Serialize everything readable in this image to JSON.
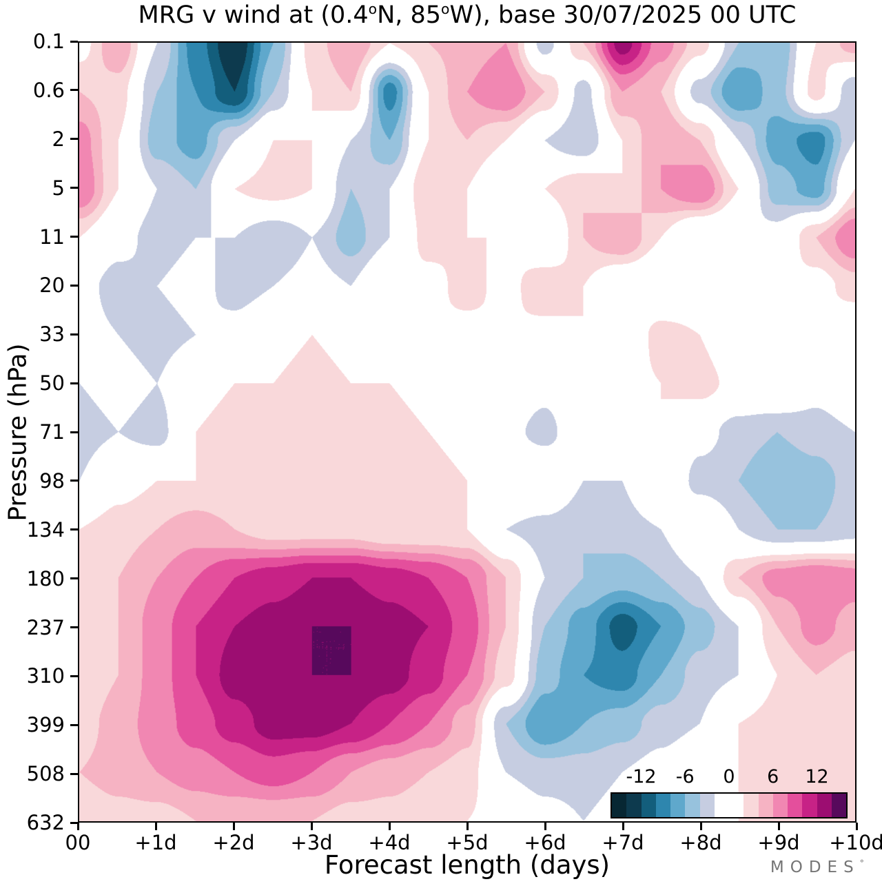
{
  "title": {
    "p1": "MRG v wind at (0.4",
    "d1": "o",
    "p2": "N, 85",
    "d2": "o",
    "p3": "W),  base 30/07/2025  00 UTC"
  },
  "axes": {
    "y_label": "Pressure (hPa)",
    "x_label": "Forecast length (days)",
    "y_ticks": [
      "0.1",
      "0.6",
      "2",
      "5",
      "11",
      "20",
      "33",
      "50",
      "71",
      "98",
      "134",
      "180",
      "237",
      "310",
      "399",
      "508",
      "632"
    ],
    "x_ticks": [
      "00",
      "+1d",
      "+2d",
      "+3d",
      "+4d",
      "+5d",
      "+6d",
      "+7d",
      "+8d",
      "+9d",
      "+10d"
    ]
  },
  "footer": {
    "logo": "MODES",
    "logo_mark": "°"
  },
  "chart_data": {
    "type": "filled_contour",
    "title": "MRG v wind at (0.4°N, 85°W), base 30/07/2025 00 UTC",
    "xlabel": "Forecast length (days)",
    "ylabel": "Pressure (hPa)",
    "x_days": [
      0,
      0.5,
      1,
      1.5,
      2,
      2.5,
      3,
      3.5,
      4,
      4.5,
      5,
      5.5,
      6,
      6.5,
      7,
      7.5,
      8,
      8.5,
      9,
      9.5,
      10
    ],
    "pressure_levels": [
      0.1,
      0.6,
      2,
      5,
      11,
      20,
      33,
      50,
      71,
      98,
      134,
      180,
      237,
      310,
      399,
      508,
      632
    ],
    "values": [
      [
        1,
        6,
        -2,
        -9,
        -14,
        -6,
        3,
        6,
        2,
        4,
        5,
        6,
        -3,
        4,
        13,
        7,
        3,
        -4,
        -6,
        2,
        5
      ],
      [
        4,
        3,
        -4,
        -8,
        -12,
        -4,
        2,
        4,
        -9,
        2,
        6,
        8,
        4,
        -3,
        6,
        4,
        -3,
        -8,
        -5,
        3,
        -4
      ],
      [
        7,
        2,
        -5,
        -7,
        -2,
        2,
        2,
        -2,
        -6,
        2,
        4,
        2,
        -2,
        -4,
        2,
        6,
        4,
        -2,
        -7,
        -9,
        -2
      ],
      [
        8,
        2,
        -2,
        -4,
        2,
        3,
        2,
        -4,
        -2,
        4,
        2,
        -2,
        2,
        4,
        2,
        6,
        8,
        2,
        -5,
        -7,
        2
      ],
      [
        2,
        -1,
        -3,
        -2,
        -2,
        -4,
        -2,
        -5,
        -2,
        3,
        2,
        2,
        -2,
        4,
        6,
        2,
        -2,
        -2,
        -1,
        4,
        8
      ],
      [
        -1,
        -3,
        -2,
        -1,
        -3,
        -2,
        -1,
        -2,
        2,
        1,
        3,
        1,
        4,
        2,
        -1,
        -2,
        -1,
        1,
        2,
        1,
        3
      ],
      [
        -1,
        -2,
        -3,
        -2,
        -1,
        1,
        2,
        1,
        -1,
        2,
        1,
        2,
        1,
        2,
        -1,
        3,
        2,
        -1,
        1,
        2,
        -1
      ],
      [
        -2,
        -1,
        -2,
        1,
        2,
        2,
        3,
        2,
        2,
        1,
        -1,
        1,
        -1,
        2,
        1,
        2,
        3,
        1,
        2,
        -1,
        1
      ],
      [
        -3,
        -2,
        -3,
        2,
        3,
        4,
        3,
        4,
        3,
        2,
        1,
        -1,
        -3,
        1,
        2,
        2,
        -1,
        -3,
        -4,
        -3,
        -2
      ],
      [
        -2,
        1,
        2,
        2,
        2,
        3,
        4,
        4,
        4,
        3,
        2,
        2,
        2,
        -2,
        -2,
        2,
        -3,
        -4,
        -6,
        -5,
        -3
      ],
      [
        2,
        3,
        4,
        5,
        4,
        3,
        3,
        3,
        2,
        2,
        2,
        -2,
        -3,
        -4,
        -3,
        -2,
        2,
        -2,
        -4,
        -4,
        -3
      ],
      [
        2,
        4,
        6,
        8,
        10,
        11,
        12,
        12,
        11,
        10,
        8,
        4,
        -2,
        -4,
        -5,
        -4,
        -2,
        4,
        7,
        8,
        7
      ],
      [
        2,
        4,
        7,
        10,
        12,
        13,
        14,
        14,
        13,
        12,
        9,
        4,
        -4,
        -7,
        -11,
        -8,
        -5,
        -2,
        4,
        7,
        5
      ],
      [
        2,
        4,
        7,
        10,
        13,
        14,
        14,
        14,
        13,
        11,
        8,
        3,
        -5,
        -8,
        -9,
        -6,
        -3,
        -2,
        2,
        4,
        3
      ],
      [
        3,
        5,
        7,
        9,
        11,
        13,
        13,
        12,
        10,
        8,
        5,
        -4,
        -8,
        -6,
        -5,
        -3,
        -2,
        2,
        3,
        2,
        2
      ],
      [
        4,
        5,
        6,
        7,
        8,
        9,
        8,
        6,
        5,
        4,
        3,
        -2,
        -3,
        -3,
        -2,
        -1,
        1,
        2,
        2,
        2,
        2
      ],
      [
        2,
        3,
        3,
        4,
        4,
        4,
        4,
        3,
        3,
        2,
        2,
        1,
        -1,
        -2,
        -1,
        1,
        1,
        2,
        2,
        2,
        2
      ]
    ],
    "colorbar": {
      "vmin": -16,
      "vmax": 16,
      "step": 2,
      "ticks": [
        -12,
        -6,
        0,
        6,
        12
      ],
      "colors": [
        "#072733",
        "#0d3a4e",
        "#135e7c",
        "#2e86ae",
        "#5fa8cc",
        "#97c2dd",
        "#c6cde1",
        "#ffffff",
        "#ffffff",
        "#f9d8da",
        "#f6b3c3",
        "#f187b2",
        "#e44f9c",
        "#c72286",
        "#9c0d71",
        "#57095c"
      ]
    }
  }
}
